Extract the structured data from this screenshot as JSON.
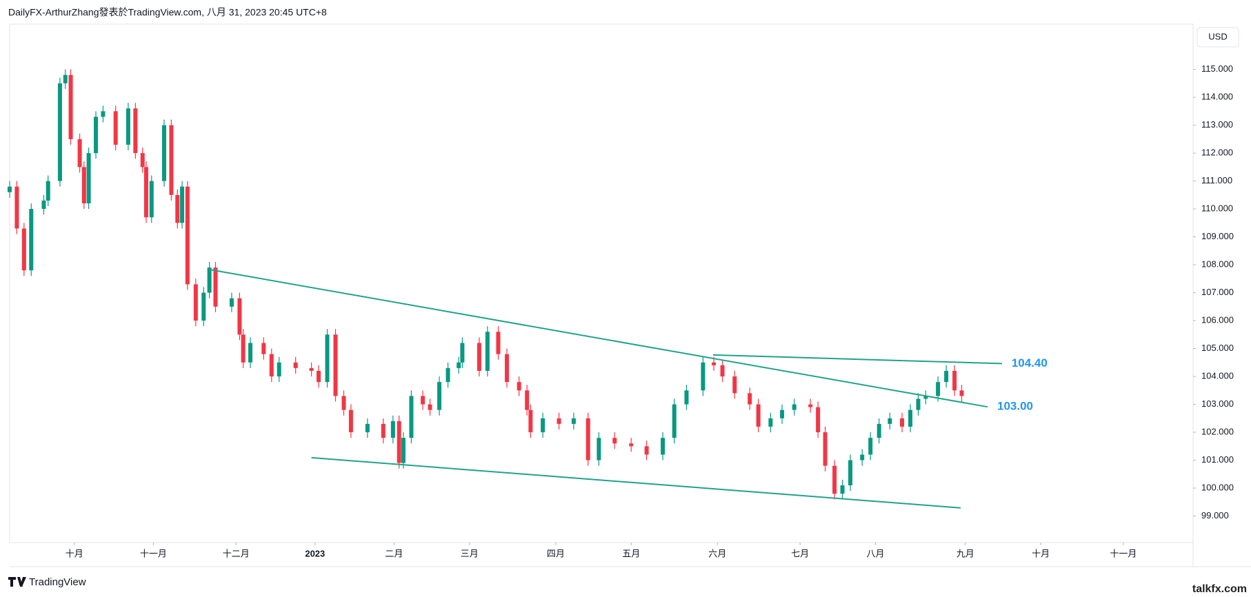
{
  "header": "DailyFX-ArthurZhang發表於TradingView.com, 八月 31, 2023 20:45 UTC+8",
  "footer": {
    "brand": "TradingView",
    "watermark": "talkfx.com"
  },
  "chart_data": {
    "type": "candlestick",
    "currency": "USD",
    "up_color": "#089981",
    "down_color": "#f23645",
    "line_color": "#1fa38a",
    "label_color": "#2196f3",
    "xlim": [
      0,
      329.4
    ],
    "xticks": [
      {
        "value": 18,
        "label": "十月"
      },
      {
        "value": 40,
        "label": "十一月"
      },
      {
        "value": 63,
        "label": "十二月"
      },
      {
        "value": 85,
        "label": "2023"
      },
      {
        "value": 107,
        "label": "二月"
      },
      {
        "value": 128,
        "label": "三月"
      },
      {
        "value": 152,
        "label": "四月"
      },
      {
        "value": 173,
        "label": "五月"
      },
      {
        "value": 197,
        "label": "六月"
      },
      {
        "value": 220,
        "label": "七月"
      },
      {
        "value": 241,
        "label": "八月"
      },
      {
        "value": 266,
        "label": "九月"
      },
      {
        "value": 287,
        "label": "十月"
      },
      {
        "value": 310,
        "label": "十一月"
      }
    ],
    "ylim": [
      98.05,
      116.62
    ],
    "yticks": [
      {
        "value": 99,
        "label": "99.000"
      },
      {
        "value": 100,
        "label": "100.000"
      },
      {
        "value": 101,
        "label": "101.000"
      },
      {
        "value": 102,
        "label": "102.000"
      },
      {
        "value": 103,
        "label": "103.000"
      },
      {
        "value": 104,
        "label": "104.000"
      },
      {
        "value": 105,
        "label": "105.000"
      },
      {
        "value": 106,
        "label": "106.000"
      },
      {
        "value": 107,
        "label": "107.000"
      },
      {
        "value": 108,
        "label": "108.000"
      },
      {
        "value": 109,
        "label": "109.000"
      },
      {
        "value": 110,
        "label": "110.000"
      },
      {
        "value": 111,
        "label": "111.000"
      },
      {
        "value": 112,
        "label": "112.000"
      },
      {
        "value": 113,
        "label": "113.000"
      },
      {
        "value": 114,
        "label": "114.000"
      },
      {
        "value": 115,
        "label": "115.000"
      }
    ],
    "x": [
      0,
      2,
      4,
      6,
      9.5,
      10.7,
      14,
      15.5,
      17,
      19.5,
      20.7,
      22,
      24,
      26,
      29.5,
      33,
      35,
      37,
      38,
      39.5,
      43,
      45,
      46.7,
      48,
      49.5,
      51.8,
      54,
      55.6,
      57.3,
      61.8,
      64,
      65,
      67,
      70.7,
      72.9,
      75,
      79.6,
      84,
      86,
      88.4,
      90.7,
      93,
      95,
      99.6,
      104,
      106.7,
      108.4,
      109.6,
      111.8,
      115,
      117,
      119.6,
      122,
      125,
      126,
      130.7,
      133,
      136,
      138.4,
      141.8,
      144,
      145,
      148.4,
      152.9,
      157,
      161,
      164,
      168.4,
      173,
      177.3,
      181.8,
      185,
      188.4,
      193,
      196,
      198.4,
      201.8,
      206,
      208.4,
      211.8,
      215,
      218.4,
      222.9,
      225,
      227,
      229.6,
      231.8,
      234,
      237.3,
      239.6,
      242,
      245,
      248.4,
      250.7,
      252.9,
      255,
      258.4,
      260.7,
      263,
      265
    ],
    "open": [
      110.6,
      110.8,
      109.3,
      107.8,
      110.0,
      110.3,
      111.0,
      114.5,
      114.8,
      112.5,
      111.5,
      110.2,
      112.0,
      113.3,
      113.5,
      112.3,
      113.6,
      112.0,
      111.5,
      109.7,
      111.0,
      113.0,
      110.5,
      109.5,
      110.8,
      107.3,
      106.0,
      107.0,
      107.9,
      106.5,
      106.8,
      105.5,
      104.5,
      105.2,
      104.8,
      104.0,
      104.5,
      104.3,
      104.2,
      103.8,
      105.5,
      103.3,
      102.8,
      102.0,
      102.3,
      101.8,
      102.4,
      100.9,
      101.8,
      103.3,
      103.0,
      102.8,
      103.8,
      104.3,
      104.5,
      105.2,
      104.2,
      105.6,
      104.8,
      103.8,
      103.5,
      102.8,
      102.0,
      102.5,
      102.3,
      102.5,
      101.0,
      101.8,
      101.6,
      101.5,
      101.2,
      101.8,
      103.0,
      103.5,
      104.5,
      104.4,
      104.0,
      103.4,
      103.0,
      102.2,
      102.5,
      102.8,
      103.0,
      102.9,
      102.0,
      100.8,
      99.8,
      100.1,
      101.0,
      101.2,
      101.8,
      102.3,
      102.5,
      102.2,
      102.8,
      103.2,
      103.3,
      103.8,
      104.2,
      103.5
    ],
    "high": [
      111.0,
      111.0,
      109.5,
      110.2,
      110.5,
      111.2,
      114.7,
      115.0,
      115.0,
      112.7,
      111.7,
      112.2,
      113.5,
      113.7,
      113.7,
      113.8,
      113.8,
      112.2,
      111.7,
      111.2,
      113.2,
      113.2,
      110.7,
      111.0,
      111.0,
      107.5,
      107.2,
      108.1,
      108.1,
      107.0,
      107.0,
      105.7,
      105.4,
      105.4,
      105.0,
      104.7,
      104.7,
      104.5,
      104.4,
      105.7,
      105.7,
      103.5,
      103.0,
      102.5,
      102.5,
      102.6,
      102.6,
      102.0,
      103.5,
      103.5,
      103.2,
      104.0,
      104.5,
      104.7,
      105.4,
      105.4,
      105.8,
      105.8,
      105.0,
      104.0,
      103.7,
      103.0,
      102.7,
      102.7,
      102.7,
      102.7,
      102.0,
      102.0,
      101.8,
      101.7,
      102.0,
      103.2,
      103.7,
      104.7,
      104.7,
      104.6,
      104.2,
      103.6,
      103.2,
      102.7,
      103.0,
      103.2,
      103.2,
      103.1,
      102.2,
      101.0,
      100.3,
      101.2,
      101.4,
      102.0,
      102.5,
      102.7,
      102.7,
      103.0,
      103.4,
      103.5,
      104.0,
      104.4,
      104.4,
      103.7
    ],
    "low": [
      110.4,
      109.1,
      107.6,
      107.6,
      109.8,
      110.1,
      110.8,
      114.3,
      112.3,
      111.3,
      110.0,
      110.0,
      111.8,
      113.1,
      112.1,
      112.1,
      111.8,
      111.3,
      109.5,
      109.5,
      110.8,
      110.3,
      109.3,
      109.3,
      107.1,
      105.8,
      105.8,
      106.8,
      106.3,
      106.3,
      105.3,
      104.3,
      104.3,
      104.6,
      103.8,
      103.8,
      104.1,
      104.0,
      103.6,
      103.6,
      103.1,
      102.6,
      101.8,
      101.8,
      101.6,
      101.6,
      100.7,
      100.7,
      101.6,
      102.8,
      102.6,
      102.6,
      103.6,
      104.1,
      104.3,
      104.0,
      104.0,
      104.6,
      103.6,
      103.3,
      102.6,
      101.8,
      101.8,
      102.1,
      102.1,
      100.8,
      100.8,
      101.4,
      101.3,
      101.0,
      101.0,
      101.6,
      102.8,
      103.3,
      104.2,
      103.8,
      103.2,
      102.8,
      102.0,
      102.0,
      102.3,
      102.6,
      102.7,
      101.8,
      100.6,
      99.6,
      99.6,
      99.9,
      100.8,
      101.0,
      101.6,
      102.1,
      102.0,
      102.0,
      102.6,
      103.0,
      103.1,
      103.6,
      103.3,
      103.1
    ],
    "close": [
      110.8,
      109.3,
      107.8,
      110.0,
      110.3,
      111.0,
      114.5,
      114.8,
      112.5,
      111.5,
      110.2,
      112.0,
      113.3,
      113.5,
      112.3,
      113.6,
      112.0,
      111.5,
      109.7,
      111.0,
      113.0,
      110.5,
      109.5,
      110.8,
      107.3,
      106.0,
      107.0,
      107.9,
      106.5,
      106.8,
      105.5,
      104.5,
      105.2,
      104.8,
      104.0,
      104.5,
      104.3,
      104.2,
      103.8,
      105.5,
      103.3,
      102.8,
      102.0,
      102.3,
      101.8,
      102.4,
      100.9,
      101.8,
      103.3,
      103.0,
      102.8,
      103.8,
      104.3,
      104.5,
      105.2,
      104.2,
      105.6,
      104.8,
      103.8,
      103.5,
      102.8,
      102.0,
      102.5,
      102.3,
      102.5,
      101.0,
      101.8,
      101.6,
      101.5,
      101.2,
      101.8,
      103.0,
      103.5,
      104.5,
      104.4,
      104.0,
      103.4,
      103.0,
      102.2,
      102.5,
      102.8,
      103.0,
      102.9,
      102.0,
      100.8,
      99.8,
      100.1,
      101.0,
      101.2,
      101.8,
      102.3,
      102.5,
      102.2,
      102.8,
      103.2,
      103.3,
      103.8,
      104.2,
      103.5,
      103.3
    ],
    "lines": [
      {
        "x": [
          55.6,
          272.2
        ],
        "y": [
          107.83,
          102.91
        ],
        "label": "103.00"
      },
      {
        "x": [
          195.8,
          276.2
        ],
        "y": [
          104.77,
          104.46
        ],
        "label": "104.40"
      },
      {
        "x": [
          84,
          264.7
        ],
        "y": [
          101.09,
          99.29
        ]
      }
    ]
  }
}
